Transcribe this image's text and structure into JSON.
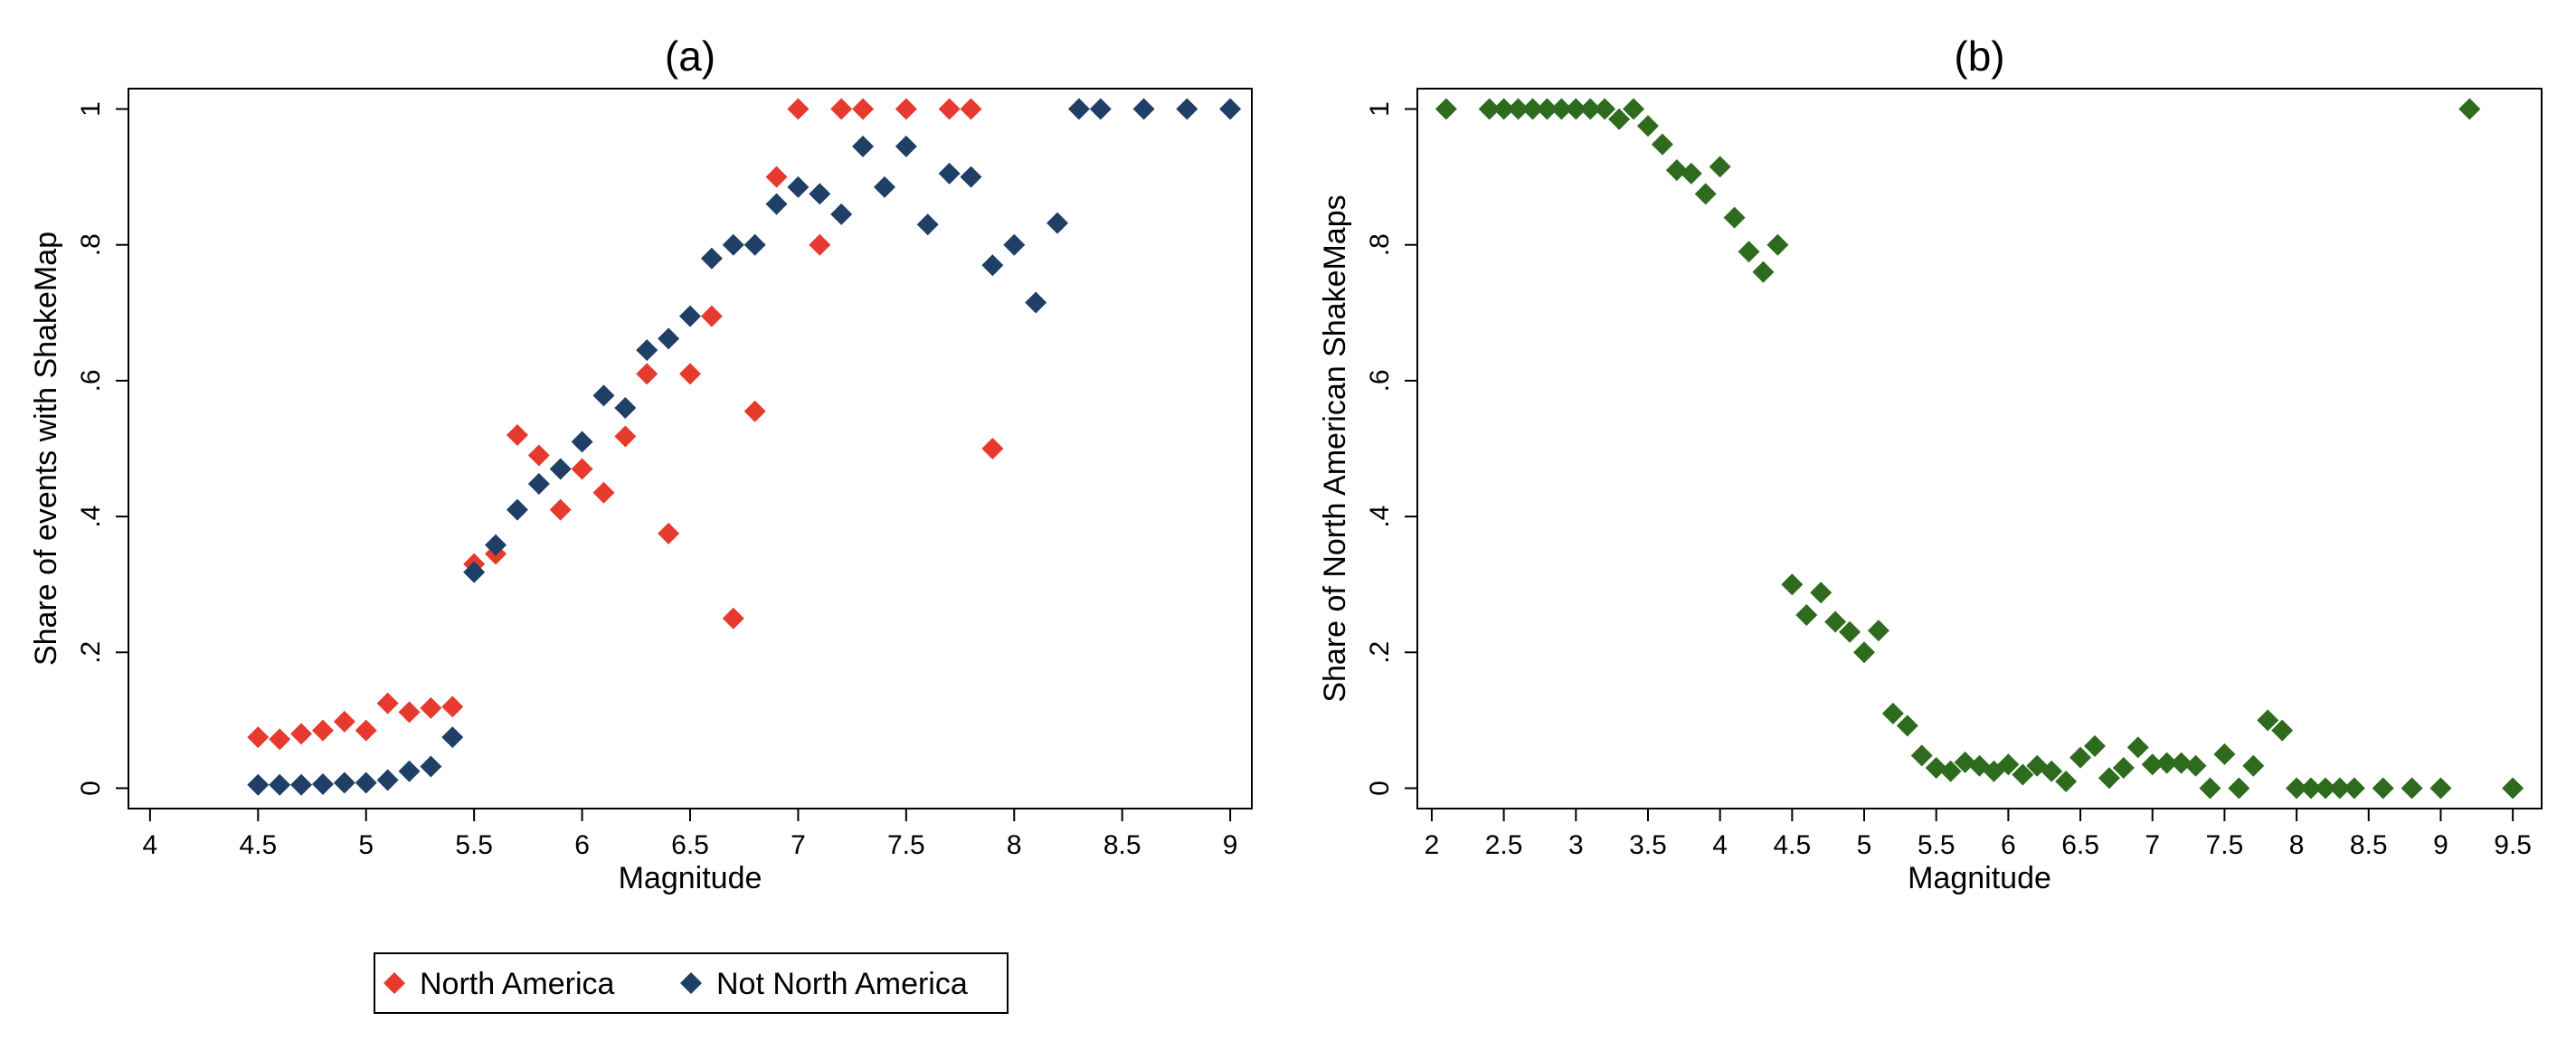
{
  "chart_data": [
    {
      "type": "scatter",
      "title": "(a)",
      "xlabel": "Magnitude",
      "ylabel": "Share of events with ShakeMap",
      "xlim": [
        3.9,
        9.1
      ],
      "ylim": [
        -0.03,
        1.03
      ],
      "x_ticks": [
        {
          "value": 4,
          "label": "4"
        },
        {
          "value": 4.5,
          "label": "4.5"
        },
        {
          "value": 5,
          "label": "5"
        },
        {
          "value": 5.5,
          "label": "5.5"
        },
        {
          "value": 6,
          "label": "6"
        },
        {
          "value": 6.5,
          "label": "6.5"
        },
        {
          "value": 7,
          "label": "7"
        },
        {
          "value": 7.5,
          "label": "7.5"
        },
        {
          "value": 8,
          "label": "8"
        },
        {
          "value": 8.5,
          "label": "8.5"
        },
        {
          "value": 9,
          "label": "9"
        }
      ],
      "y_ticks": [
        {
          "value": 0,
          "label": "0"
        },
        {
          "value": 0.2,
          "label": ".2"
        },
        {
          "value": 0.4,
          "label": ".4"
        },
        {
          "value": 0.6,
          "label": ".6"
        },
        {
          "value": 0.8,
          "label": ".8"
        },
        {
          "value": 1,
          "label": "1"
        }
      ],
      "grid": false,
      "legend": {
        "placement": "bottom"
      },
      "series": [
        {
          "name": "North America",
          "color": "#e63a2e",
          "marker": "diamond",
          "x": [
            4.5,
            4.6,
            4.7,
            4.8,
            4.9,
            5.0,
            5.1,
            5.2,
            5.3,
            5.4,
            5.5,
            5.6,
            5.7,
            5.8,
            5.9,
            6.0,
            6.1,
            6.2,
            6.3,
            6.4,
            6.5,
            6.6,
            6.7,
            6.8,
            6.9,
            7.0,
            7.1,
            7.2,
            7.3,
            7.5,
            7.7,
            7.8,
            7.9
          ],
          "y": [
            0.075,
            0.072,
            0.08,
            0.085,
            0.098,
            0.085,
            0.125,
            0.112,
            0.118,
            0.12,
            0.33,
            0.345,
            0.52,
            0.49,
            0.41,
            0.47,
            0.435,
            0.518,
            0.61,
            0.375,
            0.61,
            0.695,
            0.25,
            0.555,
            0.9,
            1.0,
            0.8,
            1.0,
            1.0,
            1.0,
            1.0,
            1.0,
            0.5
          ]
        },
        {
          "name": "Not North America",
          "color": "#1f3f66",
          "marker": "diamond",
          "x": [
            4.5,
            4.6,
            4.7,
            4.8,
            4.9,
            5.0,
            5.1,
            5.2,
            5.3,
            5.4,
            5.5,
            5.6,
            5.7,
            5.8,
            5.9,
            6.0,
            6.1,
            6.2,
            6.3,
            6.4,
            6.5,
            6.6,
            6.7,
            6.8,
            6.9,
            7.0,
            7.1,
            7.2,
            7.3,
            7.4,
            7.5,
            7.6,
            7.7,
            7.8,
            7.9,
            8.0,
            8.1,
            8.2,
            8.3,
            8.4,
            8.6,
            8.8,
            9.0
          ],
          "y": [
            0.005,
            0.005,
            0.005,
            0.006,
            0.008,
            0.008,
            0.012,
            0.025,
            0.032,
            0.075,
            0.318,
            0.358,
            0.41,
            0.448,
            0.47,
            0.51,
            0.578,
            0.56,
            0.645,
            0.662,
            0.695,
            0.78,
            0.8,
            0.8,
            0.86,
            0.885,
            0.875,
            0.845,
            0.945,
            0.885,
            0.945,
            0.83,
            0.905,
            0.9,
            0.77,
            0.8,
            0.715,
            0.832,
            1.0,
            1.0,
            1.0,
            1.0,
            1.0
          ]
        }
      ]
    },
    {
      "type": "scatter",
      "title": "(b)",
      "xlabel": "Magnitude",
      "ylabel": "Share of North American ShakeMaps",
      "xlim": [
        1.9,
        9.7
      ],
      "ylim": [
        -0.03,
        1.03
      ],
      "x_ticks": [
        {
          "value": 2,
          "label": "2"
        },
        {
          "value": 2.5,
          "label": "2.5"
        },
        {
          "value": 3,
          "label": "3"
        },
        {
          "value": 3.5,
          "label": "3.5"
        },
        {
          "value": 4,
          "label": "4"
        },
        {
          "value": 4.5,
          "label": "4.5"
        },
        {
          "value": 5,
          "label": "5"
        },
        {
          "value": 5.5,
          "label": "5.5"
        },
        {
          "value": 6,
          "label": "6"
        },
        {
          "value": 6.5,
          "label": "6.5"
        },
        {
          "value": 7,
          "label": "7"
        },
        {
          "value": 7.5,
          "label": "7.5"
        },
        {
          "value": 8,
          "label": "8"
        },
        {
          "value": 8.5,
          "label": "8.5"
        },
        {
          "value": 9,
          "label": "9"
        },
        {
          "value": 9.5,
          "label": "9.5"
        }
      ],
      "y_ticks": [
        {
          "value": 0,
          "label": "0"
        },
        {
          "value": 0.2,
          "label": ".2"
        },
        {
          "value": 0.4,
          "label": ".4"
        },
        {
          "value": 0.6,
          "label": ".6"
        },
        {
          "value": 0.8,
          "label": ".8"
        },
        {
          "value": 1,
          "label": "1"
        }
      ],
      "grid": false,
      "series": [
        {
          "color": "#2e6b1e",
          "marker": "diamond",
          "x": [
            2.1,
            2.4,
            2.5,
            2.6,
            2.7,
            2.8,
            2.9,
            3.0,
            3.1,
            3.2,
            3.3,
            3.4,
            3.5,
            3.6,
            3.7,
            3.8,
            3.9,
            4.0,
            4.1,
            4.2,
            4.3,
            4.4,
            4.5,
            4.6,
            4.7,
            4.8,
            4.9,
            5.0,
            5.1,
            5.2,
            5.3,
            5.4,
            5.5,
            5.6,
            5.7,
            5.8,
            5.9,
            6.0,
            6.1,
            6.2,
            6.3,
            6.4,
            6.5,
            6.6,
            6.7,
            6.8,
            6.9,
            7.0,
            7.1,
            7.2,
            7.3,
            7.4,
            7.5,
            7.6,
            7.7,
            7.8,
            7.9,
            8.0,
            8.1,
            8.2,
            8.3,
            8.4,
            8.6,
            8.8,
            9.0,
            9.2,
            9.5
          ],
          "y": [
            1.0,
            1.0,
            1.0,
            1.0,
            1.0,
            1.0,
            1.0,
            1.0,
            1.0,
            1.0,
            0.985,
            1.0,
            0.975,
            0.948,
            0.91,
            0.905,
            0.875,
            0.915,
            0.84,
            0.79,
            0.76,
            0.8,
            0.3,
            0.255,
            0.288,
            0.245,
            0.23,
            0.2,
            0.232,
            0.11,
            0.092,
            0.048,
            0.03,
            0.025,
            0.038,
            0.033,
            0.025,
            0.035,
            0.02,
            0.033,
            0.025,
            0.01,
            0.045,
            0.062,
            0.015,
            0.03,
            0.06,
            0.035,
            0.037,
            0.037,
            0.033,
            0.0,
            0.05,
            0.0,
            0.033,
            0.1,
            0.085,
            0.0,
            0.0,
            0.0,
            0.0,
            0.0,
            0.0,
            0.0,
            0.0,
            1.0,
            0.0
          ]
        }
      ]
    }
  ]
}
